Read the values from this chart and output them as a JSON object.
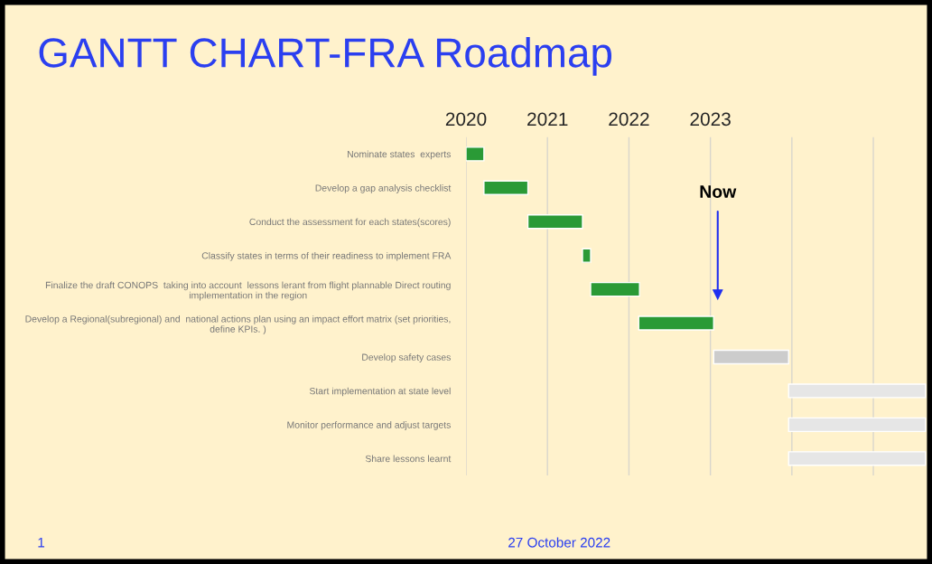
{
  "chart_data": {
    "type": "bar",
    "orientation": "horizontal",
    "title": "GANTT CHART-FRA Roadmap",
    "categories": [
      "Nominate states  experts",
      "Develop a gap analysis checklist",
      "Conduct the assessment for each states(scores)",
      "Classify states in terms of their readiness to implement FRA",
      "Finalize the draft CONOPS  taking into account  lessons lerant from flight plannable Direct routing\nimplementation in the region",
      "Develop a Regional(subregional) and  national actions plan using an impact effort matrix (set priorities,\ndefine KPIs. )",
      "Develop safety cases",
      "Start implementation at state level",
      "Monitor performance and adjust targets",
      "Share lessons learnt"
    ],
    "base": [
      2020.0,
      2020.22,
      2020.76,
      2021.43,
      2021.53,
      2022.12,
      2023.04,
      2023.96,
      2023.96,
      2023.96
    ],
    "values": [
      0.22,
      0.54,
      0.67,
      0.1,
      0.6,
      0.92,
      0.92,
      1.68,
      1.68,
      1.68
    ],
    "colors": [
      "#2a9a36",
      "#2a9a36",
      "#2a9a36",
      "#2a9a36",
      "#2a9a36",
      "#2a9a36",
      "#cccccc",
      "#e6e6e6",
      "#e6e6e6",
      "#e6e6e6"
    ],
    "xlim": [
      2020,
      2025.72
    ],
    "xticks": [
      2020,
      2021,
      2022,
      2023,
      {
        "value": 2024,
        "label": null
      },
      {
        "value": 2025,
        "label": null
      }
    ],
    "grid": "x",
    "ref_lines": [
      {
        "axis": "x",
        "value": 2023.09,
        "label": "Now",
        "color": "#1f2ff0"
      }
    ],
    "annotations": [
      "1",
      "27 October 2022"
    ]
  }
}
